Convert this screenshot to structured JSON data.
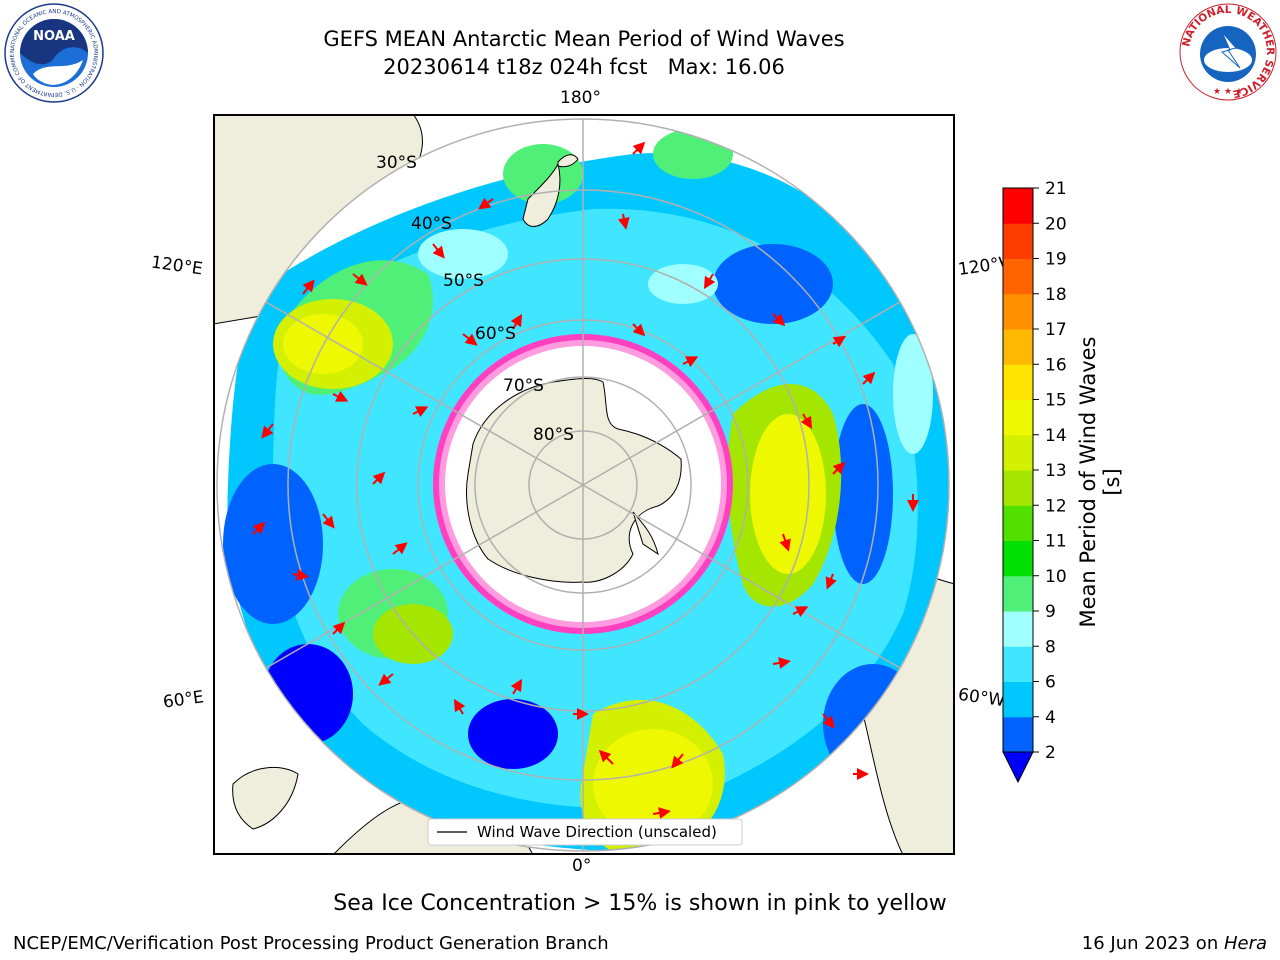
{
  "title": {
    "line1": "GEFS MEAN Antarctic Mean Period of Wind Waves",
    "line2": "20230614 t18z 024h fcst   Max: 16.06"
  },
  "map": {
    "longitude_labels": {
      "top": "180°",
      "bottom": "0°",
      "upper_left": "120°E",
      "upper_right": "120°W",
      "lower_left": "60°E",
      "lower_right": "60°W"
    },
    "latitude_labels": [
      "30°S",
      "40°S",
      "50°S",
      "60°S",
      "70°S",
      "80°S"
    ],
    "legend": "Wind Wave Direction (unscaled)"
  },
  "colorbar": {
    "label": "Mean Period of Wind Waves [s]",
    "ticks": [
      "2",
      "4",
      "6",
      "8",
      "9",
      "10",
      "11",
      "12",
      "13",
      "14",
      "15",
      "16",
      "17",
      "18",
      "19",
      "20",
      "21"
    ],
    "colors": [
      "#0062ff",
      "#00c8ff",
      "#40e6ff",
      "#a0ffff",
      "#50f078",
      "#00e000",
      "#52e000",
      "#a4e600",
      "#d2f000",
      "#eef800",
      "#ffe400",
      "#ffb900",
      "#ff9000",
      "#ff6400",
      "#ff3c00",
      "#ff0000"
    ],
    "extend_color": "#0000ff"
  },
  "subtitle": "Sea Ice Concentration > 15% is shown in pink to yellow",
  "footer": {
    "left": "NCEP/EMC/Verification Post Processing Product Generation Branch",
    "right_date": "16 Jun 2023 on ",
    "right_host": "Hera"
  },
  "logos": {
    "left": "NOAA",
    "left_ring": "NATIONAL OCEANIC AND ATMOSPHERIC ADMINISTRATION · U.S. DEPARTMENT OF COMMERCE",
    "right_ring": "NATIONAL WEATHER SERVICE"
  },
  "colors": {
    "land": "#efeddb",
    "ocean_blue": "#0000ff",
    "grid": "#b0b0b0",
    "arrow": "#ff0000",
    "ice": "#ff40c0"
  }
}
